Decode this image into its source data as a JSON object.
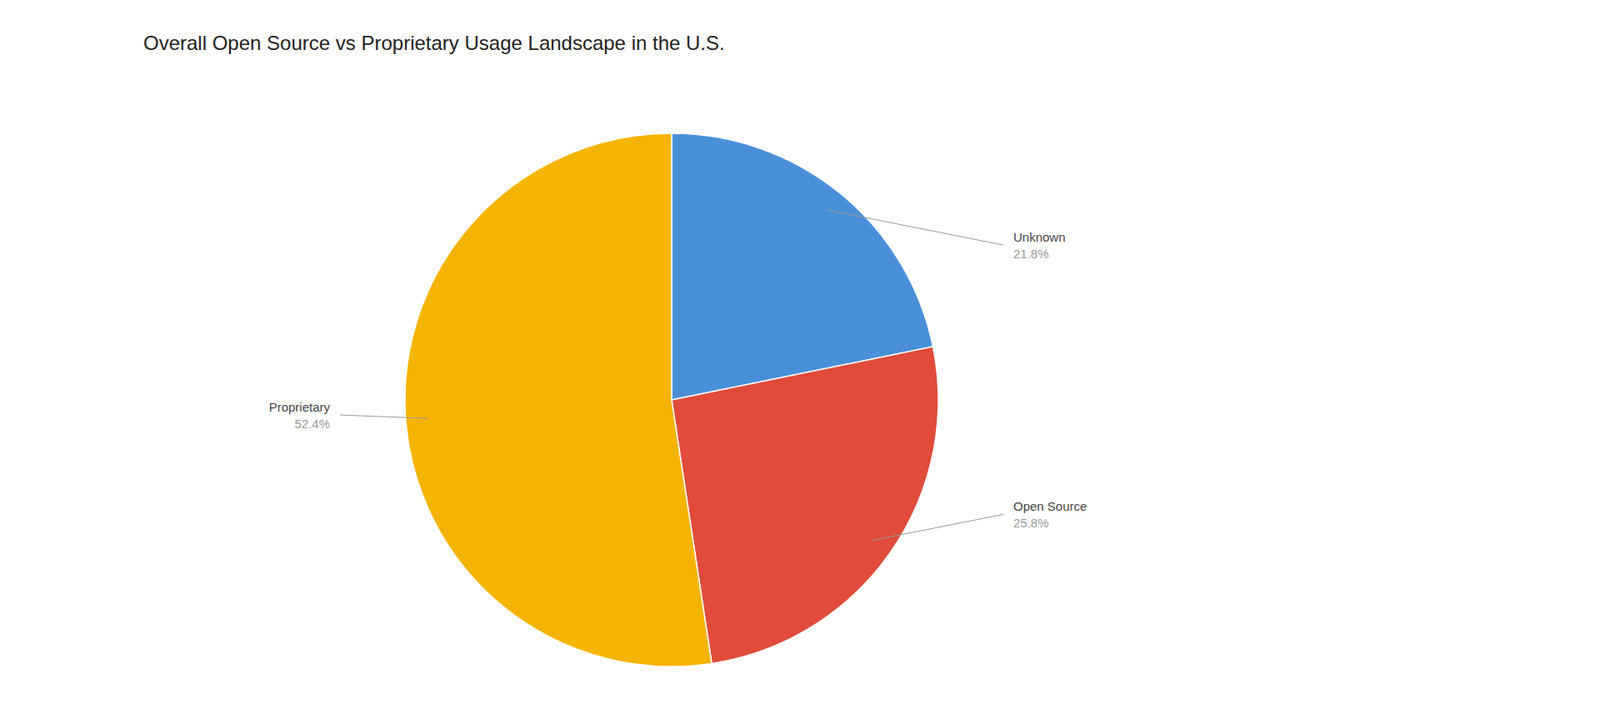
{
  "chart_data": {
    "type": "pie",
    "title": "Overall Open Source vs Proprietary Usage Landscape in the U.S.",
    "categories": [
      "Unknown",
      "Open Source",
      "Proprietary"
    ],
    "values": [
      21.8,
      25.8,
      52.4
    ],
    "value_labels": [
      "21.8%",
      "25.8%",
      "52.4%"
    ],
    "colors": [
      "#4A90D9",
      "#E04B3A",
      "#F5B400"
    ],
    "data_labels": true
  }
}
